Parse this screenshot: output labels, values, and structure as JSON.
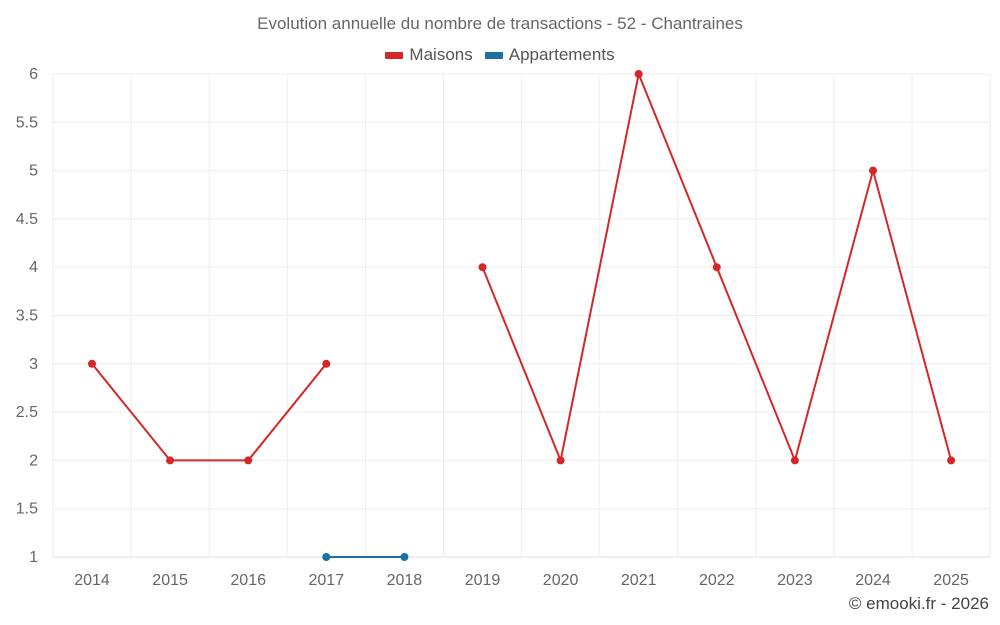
{
  "header": {
    "title": "Evolution annuelle du nombre de transactions - 52 - Chantraines"
  },
  "footer": {
    "credit": "© emooki.fr - 2026"
  },
  "colors": {
    "maisons": "#d62728",
    "appartements": "#1f6fa3",
    "grid": "#eeeeee",
    "axis": "#dddddd"
  },
  "chart_data": {
    "type": "line",
    "title": "Evolution annuelle du nombre de transactions - 52 - Chantraines",
    "xlabel": "",
    "ylabel": "",
    "categories": [
      "2014",
      "2015",
      "2016",
      "2017",
      "2018",
      "2019",
      "2020",
      "2021",
      "2022",
      "2023",
      "2024",
      "2025"
    ],
    "ylim": [
      1,
      6
    ],
    "yticks": [
      "1",
      "1.5",
      "2",
      "2.5",
      "3",
      "3.5",
      "4",
      "4.5",
      "5",
      "5.5",
      "6"
    ],
    "grid": true,
    "legend_position": "top-center",
    "series": [
      {
        "name": "Maisons",
        "color": "#d62728",
        "values": [
          3,
          2,
          2,
          3,
          null,
          4,
          2,
          6,
          4,
          2,
          5,
          2
        ]
      },
      {
        "name": "Appartements",
        "color": "#1f6fa3",
        "values": [
          null,
          null,
          null,
          1,
          1,
          null,
          null,
          null,
          null,
          null,
          null,
          null
        ]
      }
    ]
  }
}
